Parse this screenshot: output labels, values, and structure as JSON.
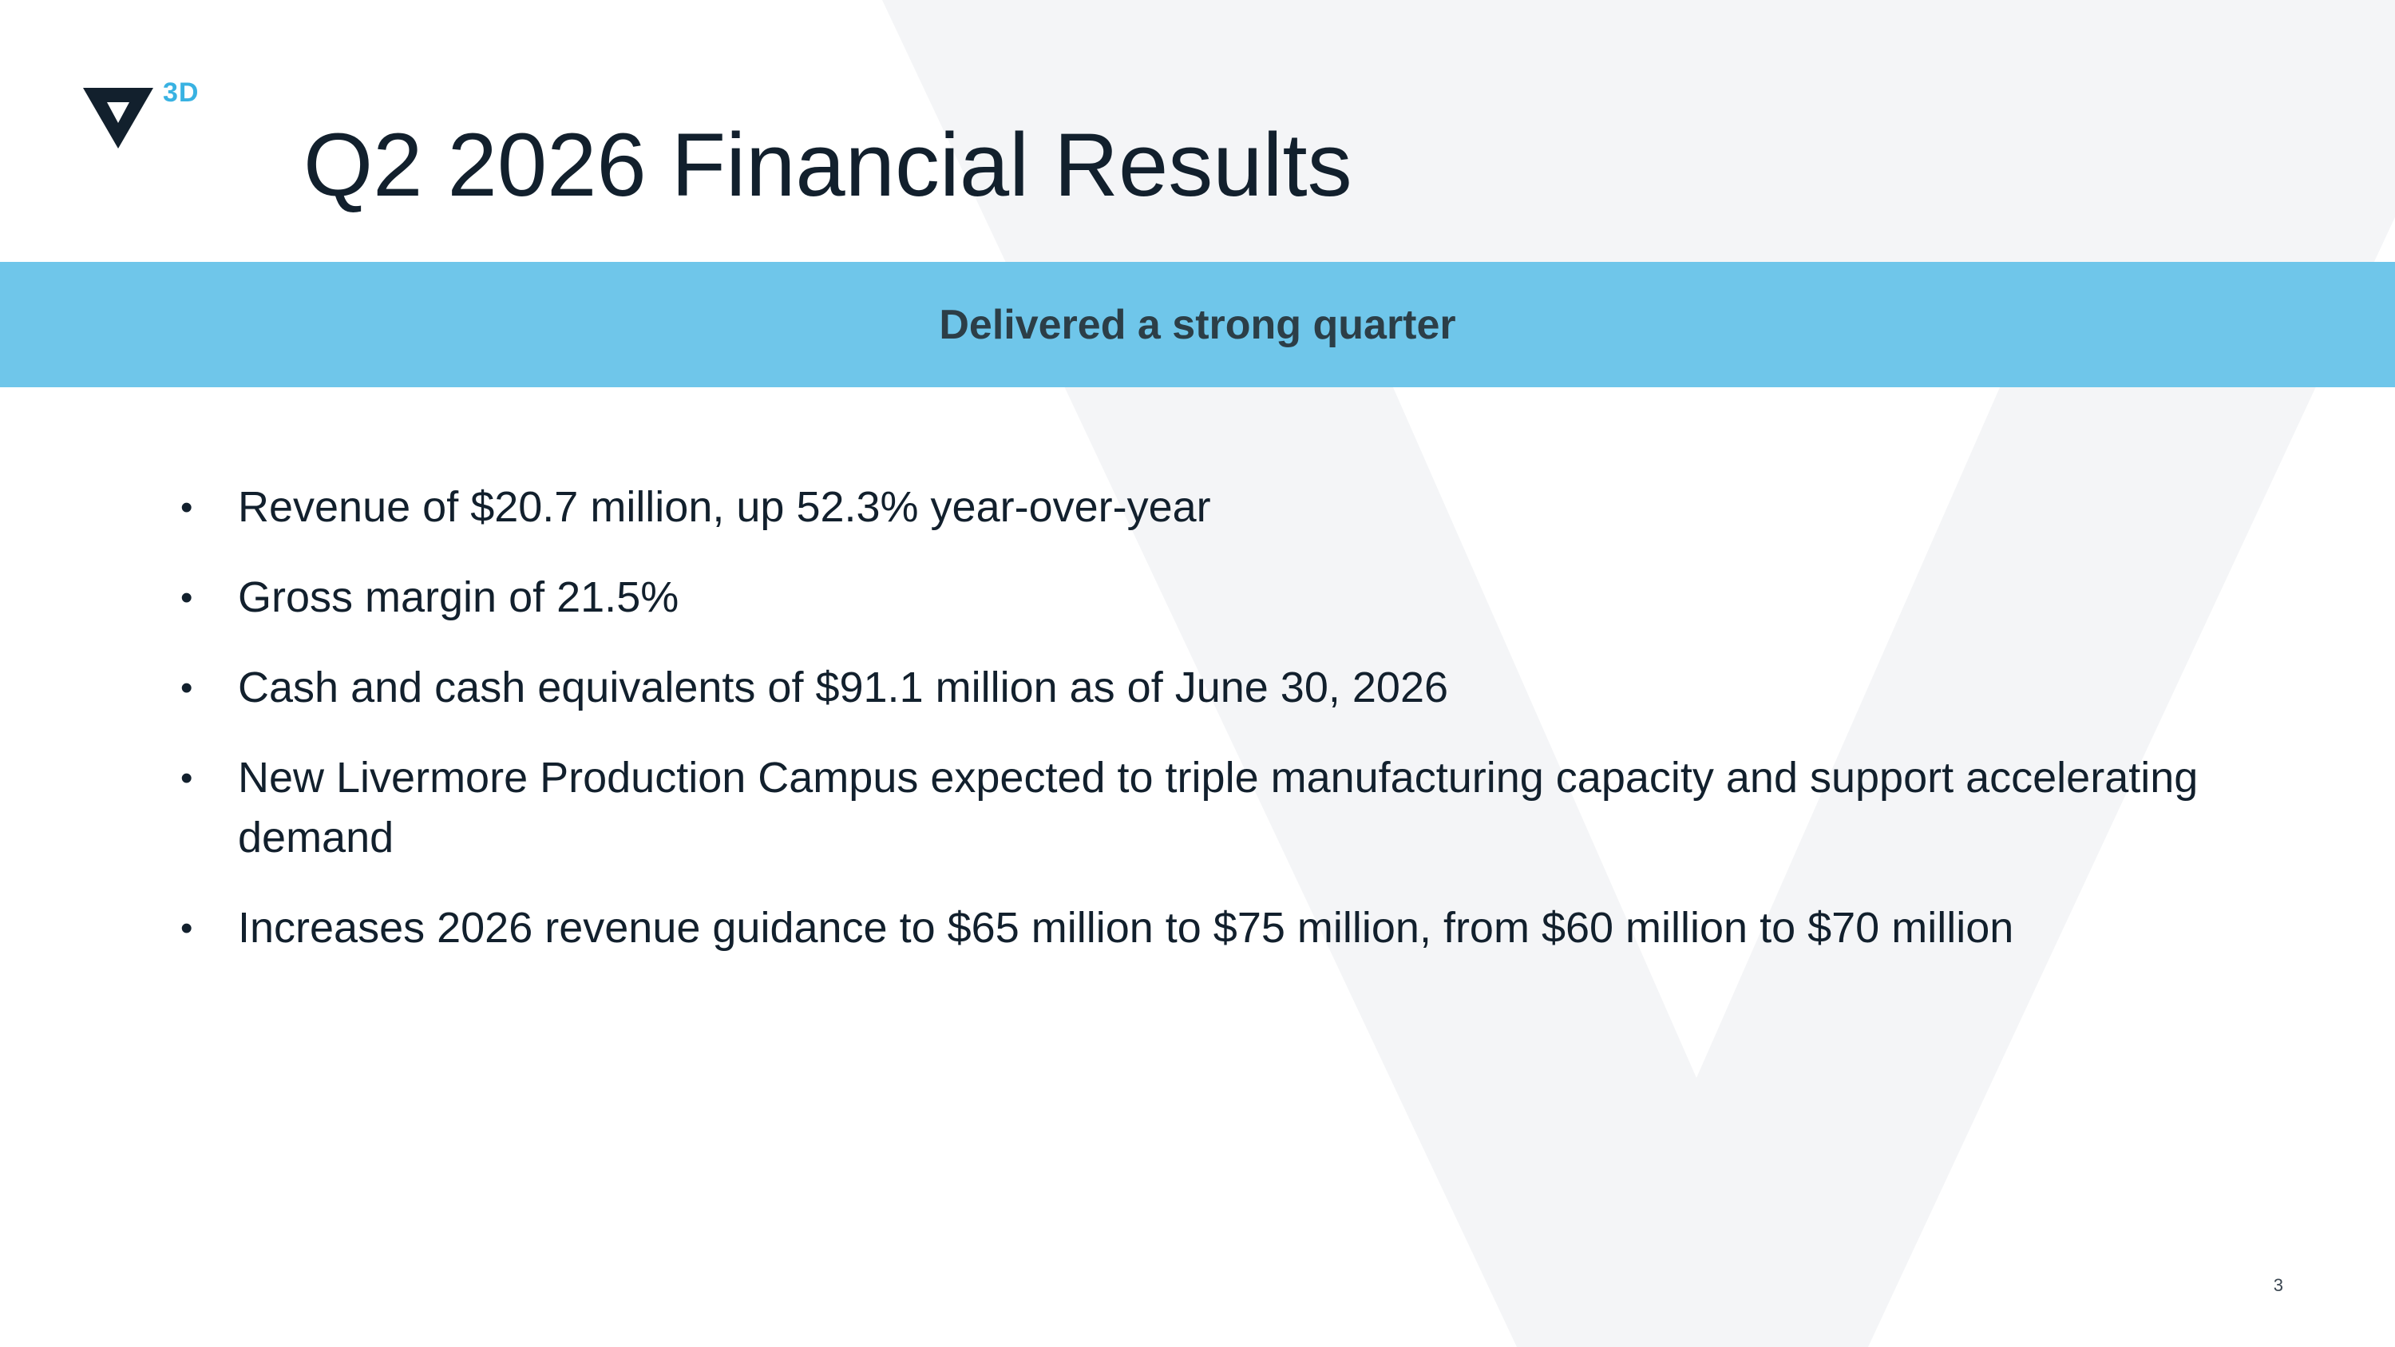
{
  "logo": {
    "mark_icon": "v-chevron-icon",
    "text": "3D"
  },
  "slide": {
    "title": "Q2 2026 Financial Results",
    "banner": "Delivered a strong quarter",
    "bullets": [
      "Revenue of $20.7 million, up 52.3% year-over-year",
      "Gross margin of 21.5%",
      "Cash and cash equivalents of $91.1 million as of June 30, 2026",
      "New Livermore Production Campus expected to triple manufacturing capacity and support accelerating demand",
      "Increases 2026 revenue guidance to $65 million to $75 million, from $60 million to $70 million"
    ],
    "bullet_marker": "•",
    "page_number": "3"
  },
  "colors": {
    "banner_background": "#6fc6ea",
    "banner_text": "#2c3e47",
    "title_text": "#12202d",
    "logo_accent": "#39b2e2",
    "logo_mark": "#12202d",
    "watermark": "#f4f5f7"
  }
}
